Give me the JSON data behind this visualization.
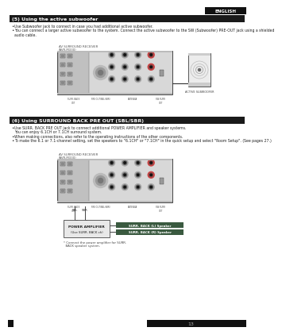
{
  "page_bg": "#ffffff",
  "header_bar_color": "#111111",
  "header_text_color": "#ffffff",
  "header_english_text": "ENGLISH",
  "section1_title": "(5) Using the active subwoofer",
  "section1_bullets": [
    "Use Subwoofer jack to connect in case you had additional active subwoofer.",
    "You can connect a larger active subwoofer to the system. Connect the active subwoofer to the SW (Subwoofer) PRE-OUT jack using a shielded audio cable."
  ],
  "section2_title": "(6) Using SURROUND BACK PRE OUT (SBL/SBR)",
  "section2_bullets": [
    "Use SURR. BACK PRE OUT jack to connect additional POWER AMPLIFIER and speaker systems. You can enjoy 6.1CH or 7.1CH surround system.",
    "When making connections, also refer to the operating instructions of the other components.",
    "To make the 6.1 or 7.1-channel setting, set the speakers to \"6.1CH\" or \"7.1CH\" in the quick setup and select \"Room Setup\". (See pages 27.)"
  ],
  "receiver_label1": "AV SURROUND RECEIVER",
  "receiver_label2": "(AVR-M330)",
  "active_subwoofer_label": "ACTIVE SUBWOOFER",
  "power_amp_label1": "POWER AMPLIFIER",
  "power_amp_label2": "(Use SURR. BACK ch)",
  "surr_back_l_label": "SURR. BACK (L) Speaker",
  "surr_back_r_label": "SURR. BACK (R) Speaker",
  "footer_note1": "* Connect the power amplifier for SURR.",
  "footer_note2": "  BACK speaker system.",
  "page_number": "13",
  "title_section_color": "#1a1a1a",
  "bullet_color": "#222222",
  "receiver_fill": "#d8d8d8",
  "receiver_border": "#444444",
  "subwoofer_fill": "#eeeeee",
  "subwoofer_border": "#444444",
  "label_green_bg": "#3a5a40",
  "label_text_color": "#ffffff",
  "port_outer": "#999999",
  "port_inner": "#555555",
  "port_hole": "#222222"
}
